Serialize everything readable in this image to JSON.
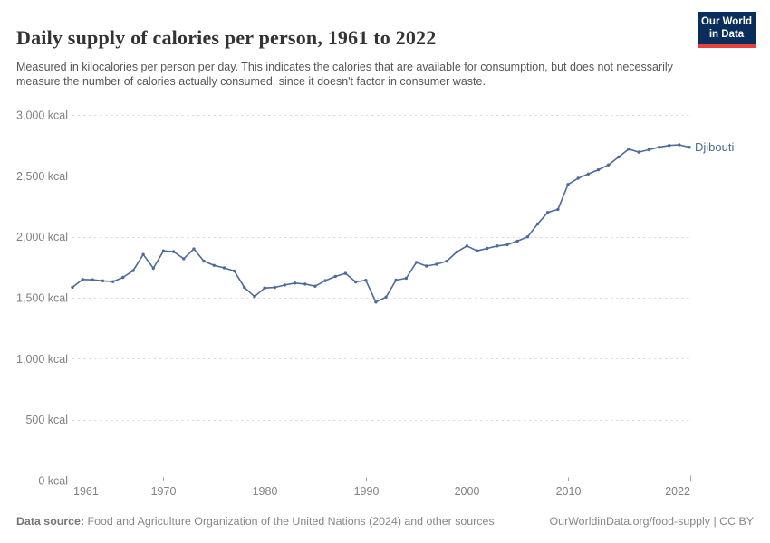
{
  "header": {
    "title": "Daily supply of calories per person, 1961 to 2022",
    "subtitle": "Measured in kilocalories per person per day. This indicates the calories that are available for consumption, but does not necessarily measure the number of calories actually consumed, since it doesn't factor in consumer waste.",
    "logo": {
      "line1": "Our World",
      "line2": "in Data",
      "bg_color": "#0A2E5C",
      "bar_color": "#E5423D"
    }
  },
  "chart_data": {
    "type": "line",
    "title": "Daily supply of calories per person, 1961 to 2022",
    "xlabel": "",
    "ylabel": "",
    "unit": "kcal",
    "grid": "horizontal-dashed",
    "legend_position": "end-of-line-label",
    "xlim": [
      1961,
      2022
    ],
    "ylim": [
      0,
      3000
    ],
    "yticks": [
      {
        "value": 0,
        "label": "0 kcal"
      },
      {
        "value": 500,
        "label": "500 kcal"
      },
      {
        "value": 1000,
        "label": "1,000 kcal"
      },
      {
        "value": 1500,
        "label": "1,500 kcal"
      },
      {
        "value": 2000,
        "label": "2,000 kcal"
      },
      {
        "value": 2500,
        "label": "2,500 kcal"
      },
      {
        "value": 3000,
        "label": "3,000 kcal"
      }
    ],
    "xticks": [
      {
        "value": 1961,
        "label": "1961"
      },
      {
        "value": 1970,
        "label": "1970"
      },
      {
        "value": 1980,
        "label": "1980"
      },
      {
        "value": 1990,
        "label": "1990"
      },
      {
        "value": 2000,
        "label": "2000"
      },
      {
        "value": 2010,
        "label": "2010"
      },
      {
        "value": 2022,
        "label": "2022"
      }
    ],
    "series": [
      {
        "name": "Djibouti",
        "color": "#4C6A9C",
        "x": [
          1961,
          1962,
          1963,
          1964,
          1965,
          1966,
          1967,
          1968,
          1969,
          1970,
          1971,
          1972,
          1973,
          1974,
          1975,
          1976,
          1977,
          1978,
          1979,
          1980,
          1981,
          1982,
          1983,
          1984,
          1985,
          1986,
          1987,
          1988,
          1989,
          1990,
          1991,
          1992,
          1993,
          1994,
          1995,
          1996,
          1997,
          1998,
          1999,
          2000,
          2001,
          2002,
          2003,
          2004,
          2005,
          2006,
          2007,
          2008,
          2009,
          2010,
          2011,
          2012,
          2013,
          2014,
          2015,
          2016,
          2017,
          2018,
          2019,
          2020,
          2021,
          2022
        ],
        "values": [
          1586,
          1650,
          1647,
          1639,
          1632,
          1667,
          1722,
          1855,
          1742,
          1884,
          1878,
          1820,
          1900,
          1800,
          1765,
          1745,
          1720,
          1585,
          1510,
          1580,
          1585,
          1605,
          1620,
          1612,
          1595,
          1640,
          1675,
          1700,
          1630,
          1643,
          1465,
          1505,
          1645,
          1660,
          1790,
          1760,
          1775,
          1800,
          1875,
          1925,
          1885,
          1905,
          1925,
          1935,
          1965,
          2000,
          2105,
          2200,
          2225,
          2430,
          2480,
          2515,
          2550,
          2590,
          2655,
          2720,
          2695,
          2715,
          2735,
          2750,
          2755,
          2735
        ]
      }
    ]
  },
  "footer": {
    "data_source_label": "Data source:",
    "data_source_text": " Food and Agriculture Organization of the United Nations (2024) and other sources",
    "link_text": "OurWorldinData.org/food-supply",
    "license_text": " | CC BY"
  }
}
